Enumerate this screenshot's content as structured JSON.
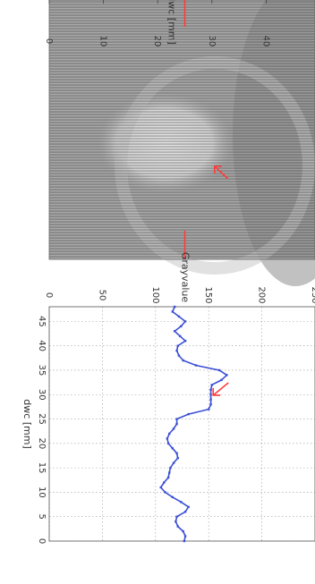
{
  "chart_data": [
    {
      "type": "image",
      "ylabel": "dwc [mm]",
      "tick_labels": [
        "0",
        "10",
        "20",
        "30",
        "40"
      ],
      "tick_values": [
        0,
        10,
        20,
        30,
        40
      ],
      "range": [
        0,
        49
      ],
      "marker_position": 25,
      "marker_color": "#ff3b3b",
      "arrow_color": "#ff3b3b",
      "arrow_at": 30
    },
    {
      "type": "line",
      "xlabel": "dwc [mm]",
      "ylabel": "Grayvalue",
      "xlim": [
        48,
        0
      ],
      "ylim": [
        0,
        250
      ],
      "x_tick_labels": [
        "45",
        "40",
        "35",
        "30",
        "25",
        "20",
        "15",
        "10",
        "5",
        "0"
      ],
      "x_tick_values": [
        45,
        40,
        35,
        30,
        25,
        20,
        15,
        10,
        5,
        0
      ],
      "y_tick_labels": [
        "0",
        "50",
        "100",
        "150",
        "200",
        "250"
      ],
      "y_tick_values": [
        0,
        50,
        100,
        150,
        200,
        250
      ],
      "grid": true,
      "line_color": "#3a4fd6",
      "arrow_color": "#ff3b3b",
      "series": [
        {
          "x": [
            48,
            47,
            46,
            45,
            44,
            43,
            42,
            41,
            40,
            39,
            38,
            37,
            36,
            35,
            34,
            33,
            32,
            31,
            30,
            29,
            28,
            27,
            26,
            25,
            24,
            23,
            22,
            21,
            20,
            19,
            18,
            17,
            16,
            15,
            14,
            13,
            12,
            11,
            10,
            9,
            8,
            7,
            6,
            5,
            4,
            3,
            2,
            1,
            0
          ],
          "y": [
            118,
            116,
            122,
            128,
            124,
            118,
            123,
            128,
            121,
            120,
            122,
            126,
            138,
            160,
            167,
            162,
            153,
            152,
            152,
            152,
            152,
            150,
            131,
            120,
            120,
            117,
            113,
            111,
            112,
            116,
            120,
            121,
            117,
            114,
            113,
            112,
            108,
            105,
            109,
            116,
            124,
            131,
            128,
            120,
            119,
            121,
            126,
            128,
            127
          ]
        }
      ]
    }
  ]
}
